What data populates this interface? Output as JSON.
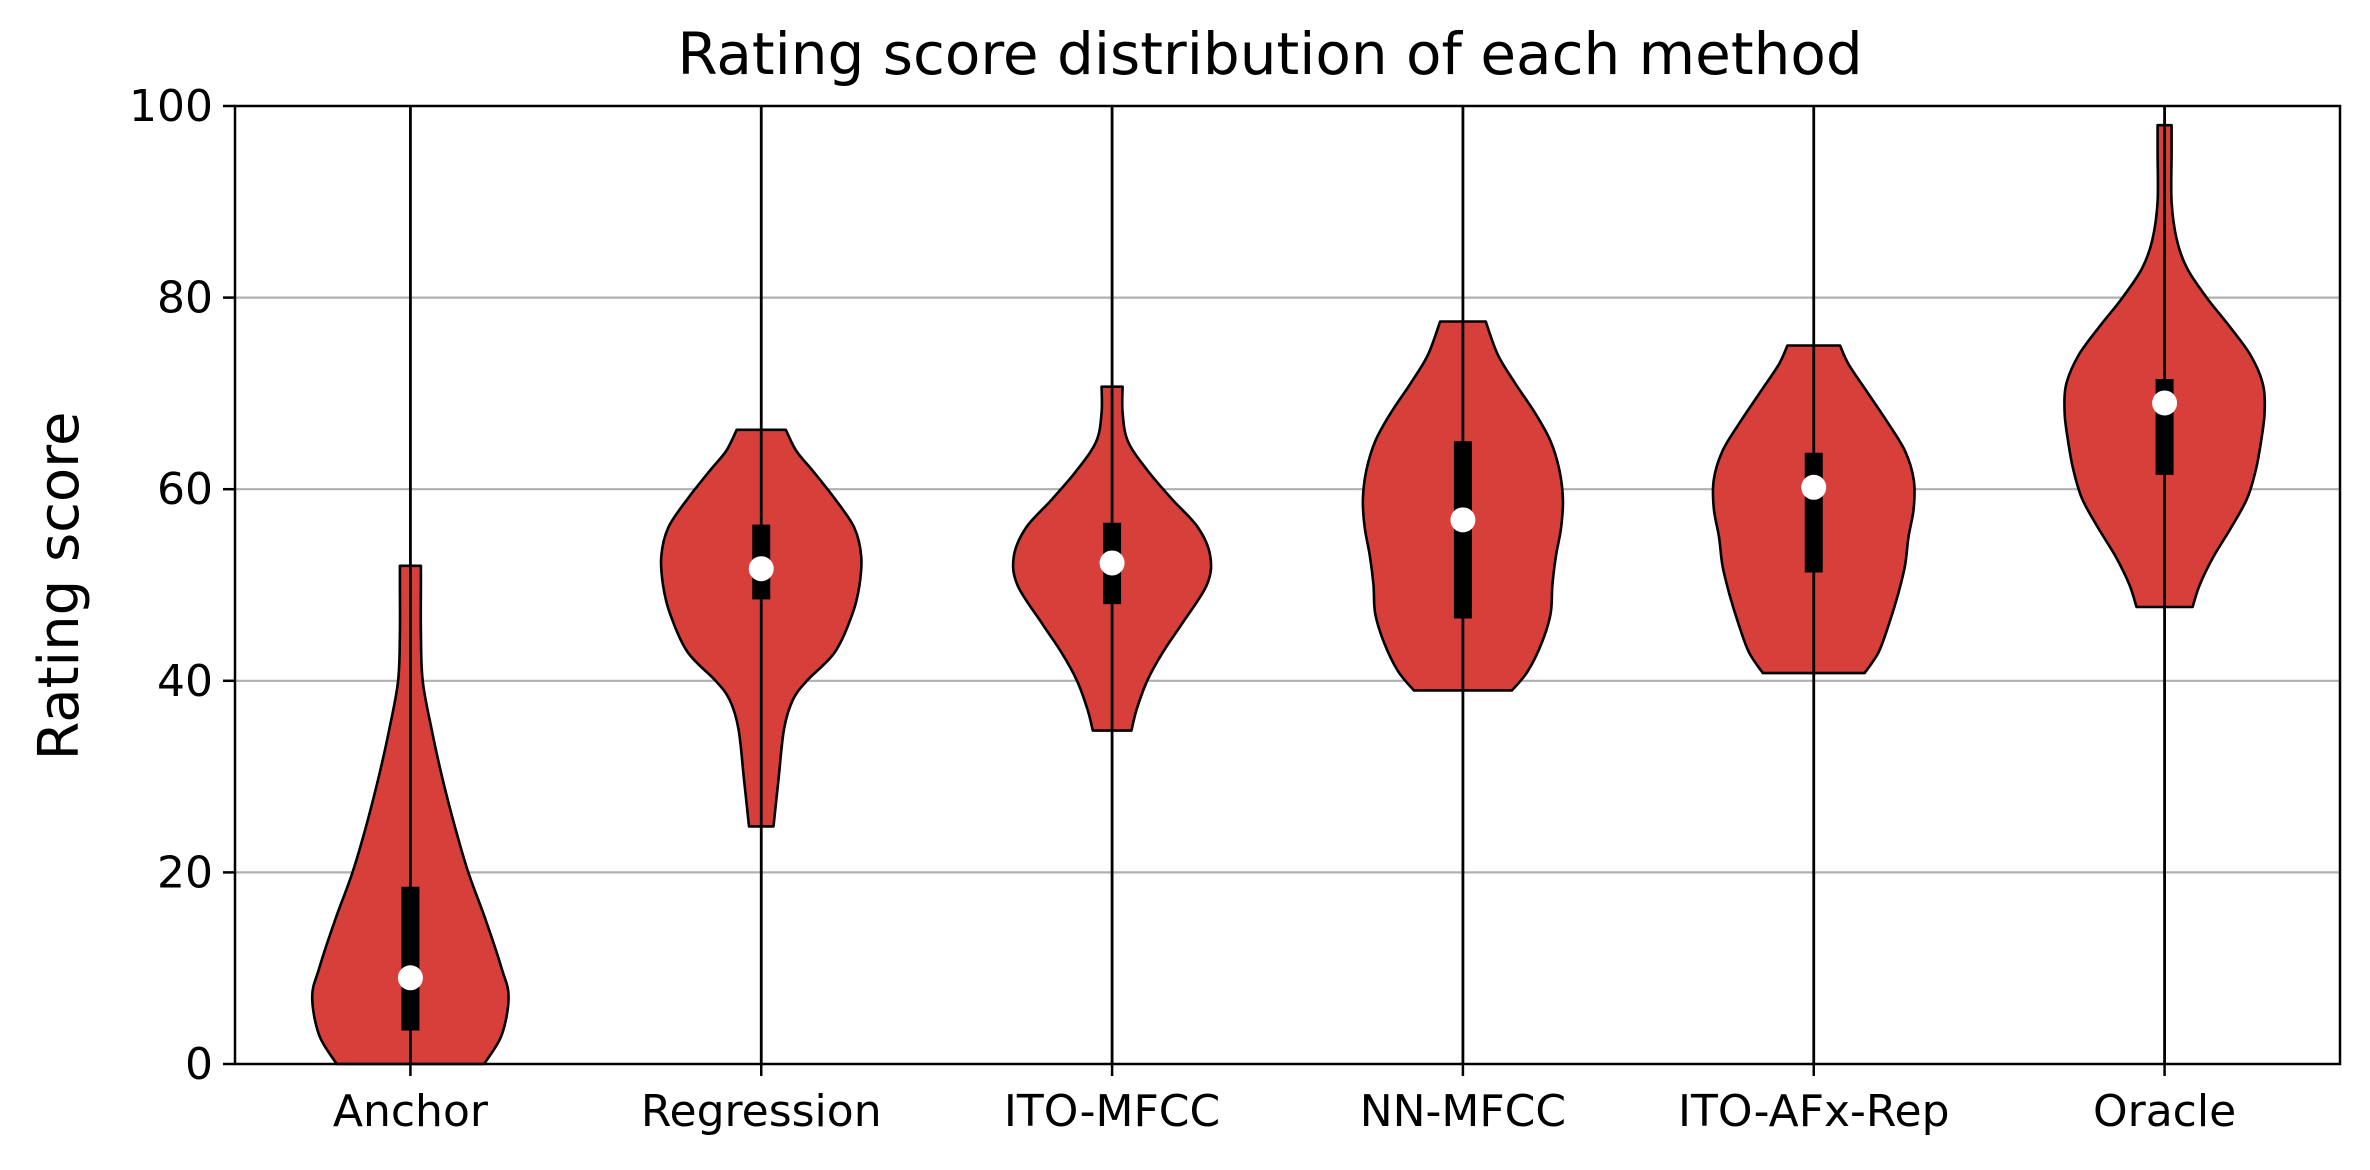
{
  "chart_data": {
    "type": "violin",
    "title": "Rating score distribution of each method",
    "xlabel": "",
    "ylabel": "Rating score",
    "ylim": [
      0,
      100
    ],
    "yticks": [
      0,
      20,
      40,
      60,
      80,
      100
    ],
    "grid": "horizontal",
    "violin_color": "#d63f3a",
    "categories": [
      "Anchor",
      "Regression",
      "ITO-MFCC",
      "NN-MFCC",
      "ITO-AFx-Rep",
      "Oracle"
    ],
    "series": [
      {
        "label": "Anchor",
        "min": 0,
        "max": 52,
        "q1": 3.5,
        "median": 9,
        "q3": 18.5,
        "density": [
          [
            0,
            0.42
          ],
          [
            3,
            0.52
          ],
          [
            7,
            0.56
          ],
          [
            10,
            0.52
          ],
          [
            15,
            0.43
          ],
          [
            20,
            0.33
          ],
          [
            25,
            0.25
          ],
          [
            30,
            0.18
          ],
          [
            35,
            0.12
          ],
          [
            40,
            0.07
          ],
          [
            45,
            0.06
          ],
          [
            50,
            0.06
          ],
          [
            52,
            0.06
          ]
        ]
      },
      {
        "label": "Regression",
        "min": 24.8,
        "max": 66.2,
        "q1": 48.5,
        "median": 51.7,
        "q3": 56.3,
        "density": [
          [
            24.8,
            0.07
          ],
          [
            30,
            0.1
          ],
          [
            35,
            0.13
          ],
          [
            38,
            0.18
          ],
          [
            40,
            0.26
          ],
          [
            43,
            0.42
          ],
          [
            47,
            0.52
          ],
          [
            50,
            0.56
          ],
          [
            53,
            0.57
          ],
          [
            56,
            0.53
          ],
          [
            59,
            0.42
          ],
          [
            62,
            0.29
          ],
          [
            64,
            0.2
          ],
          [
            66.2,
            0.14
          ]
        ]
      },
      {
        "label": "ITO-MFCC",
        "min": 34.8,
        "max": 70.7,
        "q1": 48,
        "median": 52.3,
        "q3": 56.5,
        "density": [
          [
            34.8,
            0.11
          ],
          [
            37,
            0.14
          ],
          [
            40,
            0.2
          ],
          [
            43,
            0.29
          ],
          [
            46,
            0.4
          ],
          [
            50,
            0.54
          ],
          [
            53,
            0.56
          ],
          [
            56,
            0.49
          ],
          [
            59,
            0.34
          ],
          [
            62,
            0.2
          ],
          [
            65,
            0.09
          ],
          [
            68,
            0.06
          ],
          [
            70.7,
            0.06
          ]
        ]
      },
      {
        "label": "NN-MFCC",
        "min": 39,
        "max": 77.5,
        "q1": 46.5,
        "median": 56.8,
        "q3": 65,
        "density": [
          [
            39,
            0.28
          ],
          [
            41,
            0.37
          ],
          [
            44,
            0.45
          ],
          [
            47,
            0.5
          ],
          [
            50,
            0.51
          ],
          [
            53,
            0.53
          ],
          [
            56,
            0.56
          ],
          [
            59,
            0.57
          ],
          [
            62,
            0.55
          ],
          [
            65,
            0.5
          ],
          [
            68,
            0.41
          ],
          [
            71,
            0.3
          ],
          [
            74,
            0.2
          ],
          [
            77.5,
            0.13
          ]
        ]
      },
      {
        "label": "ITO-AFx-Rep",
        "min": 40.8,
        "max": 75,
        "q1": 51.3,
        "median": 60.2,
        "q3": 63.8,
        "density": [
          [
            40.8,
            0.29
          ],
          [
            43,
            0.37
          ],
          [
            46,
            0.43
          ],
          [
            49,
            0.48
          ],
          [
            52,
            0.52
          ],
          [
            55,
            0.54
          ],
          [
            58,
            0.57
          ],
          [
            61,
            0.57
          ],
          [
            64,
            0.52
          ],
          [
            67,
            0.42
          ],
          [
            70,
            0.31
          ],
          [
            73,
            0.2
          ],
          [
            75,
            0.15
          ]
        ]
      },
      {
        "label": "Oracle",
        "min": 47.7,
        "max": 98,
        "q1": 61.5,
        "median": 69,
        "q3": 71.5,
        "density": [
          [
            47.7,
            0.16
          ],
          [
            50,
            0.2
          ],
          [
            53,
            0.28
          ],
          [
            56,
            0.38
          ],
          [
            59,
            0.47
          ],
          [
            62,
            0.52
          ],
          [
            65,
            0.55
          ],
          [
            68,
            0.57
          ],
          [
            71,
            0.56
          ],
          [
            74,
            0.49
          ],
          [
            77,
            0.37
          ],
          [
            80,
            0.24
          ],
          [
            83,
            0.13
          ],
          [
            86,
            0.07
          ],
          [
            90,
            0.04
          ],
          [
            95,
            0.04
          ],
          [
            98,
            0.04
          ]
        ]
      }
    ]
  }
}
